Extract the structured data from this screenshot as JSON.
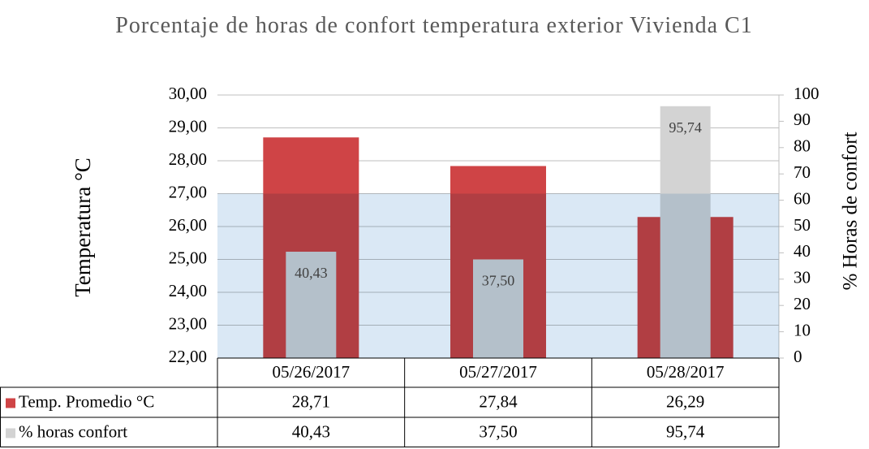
{
  "chart_data": {
    "type": "bar",
    "title": "Porcentaje de horas de confort temperatura exterior Vivienda C1",
    "y_label": "Temperatura °C",
    "y2_label": "% Horas de  confort",
    "categories": [
      "05/26/2017",
      "05/27/2017",
      "05/28/2017"
    ],
    "series": [
      {
        "name": "Temp. Promedio °C",
        "color": "#cf4446",
        "values": [
          28.71,
          27.84,
          26.29
        ],
        "value_labels": [
          "28,71",
          "27,84",
          "26,29"
        ]
      },
      {
        "name": "% horas confort",
        "color": "#d3d3d3",
        "axis": "y2",
        "values": [
          40.43,
          37.5,
          95.74
        ],
        "value_labels": [
          "40,43",
          "37,50",
          "95,74"
        ]
      }
    ],
    "ylim": [
      22,
      30
    ],
    "yticks": [
      {
        "value": 22,
        "label": "22,00"
      },
      {
        "value": 23,
        "label": "23,00"
      },
      {
        "value": 24,
        "label": "24,00"
      },
      {
        "value": 25,
        "label": "25,00"
      },
      {
        "value": 26,
        "label": "26,00"
      },
      {
        "value": 27,
        "label": "27,00"
      },
      {
        "value": 28,
        "label": "28,00"
      },
      {
        "value": 29,
        "label": "29,00"
      },
      {
        "value": 30,
        "label": "30,00"
      }
    ],
    "y2lim": [
      0,
      100
    ],
    "y2ticks": [
      0,
      10,
      20,
      30,
      40,
      50,
      60,
      70,
      80,
      90,
      100
    ],
    "band": {
      "ylim": [
        22,
        27
      ],
      "color": "#dae8f5"
    },
    "grid": true
  }
}
